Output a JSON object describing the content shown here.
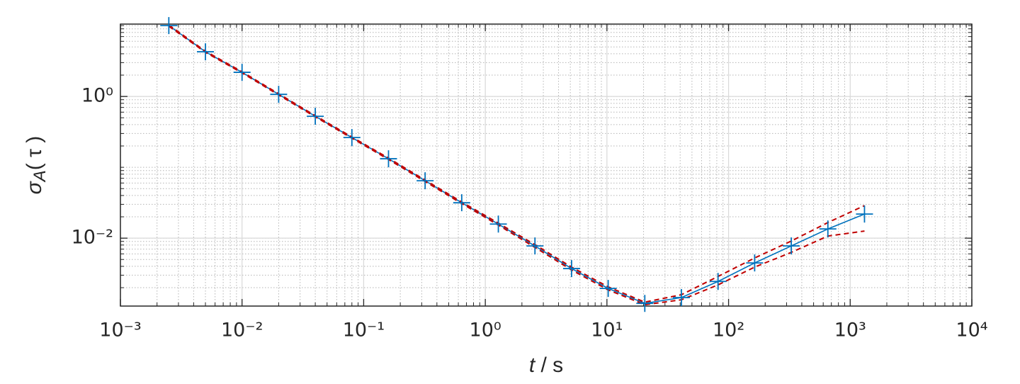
{
  "chart_data": {
    "type": "line",
    "xlabel": [
      "t",
      " / s"
    ],
    "ylabel": [
      "σ",
      "A",
      "( τ )"
    ],
    "x": [
      0.0025,
      0.005,
      0.01,
      0.02,
      0.04,
      0.08,
      0.16,
      0.32,
      0.64,
      1.28,
      2.56,
      5.12,
      10.24,
      20.48,
      40.96,
      81.92,
      163.84,
      327.68,
      655.36,
      1310.72
    ],
    "series": [
      {
        "color": "#0072bd",
        "marker": "+",
        "dash": false,
        "values": [
          10,
          4.27,
          2.19,
          1.07,
          0.525,
          0.263,
          0.132,
          0.0646,
          0.0316,
          0.0158,
          0.00776,
          0.00372,
          0.00195,
          0.0012,
          0.00145,
          0.00245,
          0.00447,
          0.00776,
          0.0135,
          0.0219
        ]
      },
      {
        "color": "#c00000",
        "marker": null,
        "dash": true,
        "values": [
          10.2,
          4.35,
          2.23,
          1.09,
          0.535,
          0.268,
          0.135,
          0.066,
          0.0324,
          0.0163,
          0.0081,
          0.0039,
          0.00205,
          0.00125,
          0.00159,
          0.00288,
          0.00525,
          0.0091,
          0.0166,
          0.0288
        ]
      },
      {
        "color": "#c00000",
        "marker": null,
        "dash": true,
        "values": [
          9.8,
          4.2,
          2.15,
          1.05,
          0.515,
          0.258,
          0.129,
          0.063,
          0.0308,
          0.0153,
          0.0074,
          0.00355,
          0.00186,
          0.00115,
          0.00135,
          0.00219,
          0.0039,
          0.0063,
          0.0107,
          0.0126
        ]
      }
    ],
    "xscale": "log",
    "yscale": "log",
    "xlim": [
      0.001,
      10000
    ],
    "ylim": [
      0.0011,
      10.5
    ],
    "xticks": [
      {
        "value": 0.001,
        "label": "10⁻³"
      },
      {
        "value": 0.01,
        "label": "10⁻²"
      },
      {
        "value": 0.1,
        "label": "10⁻¹"
      },
      {
        "value": 1,
        "label": "10⁰"
      },
      {
        "value": 10,
        "label": "10¹"
      },
      {
        "value": 100,
        "label": "10²"
      },
      {
        "value": 1000,
        "label": "10³"
      },
      {
        "value": 10000,
        "label": "10⁴"
      }
    ],
    "yticks": [
      {
        "value": 0.01,
        "label": "10⁻²"
      },
      {
        "value": 1,
        "label": "10⁰"
      }
    ],
    "grid": true,
    "minor_grid": true
  }
}
